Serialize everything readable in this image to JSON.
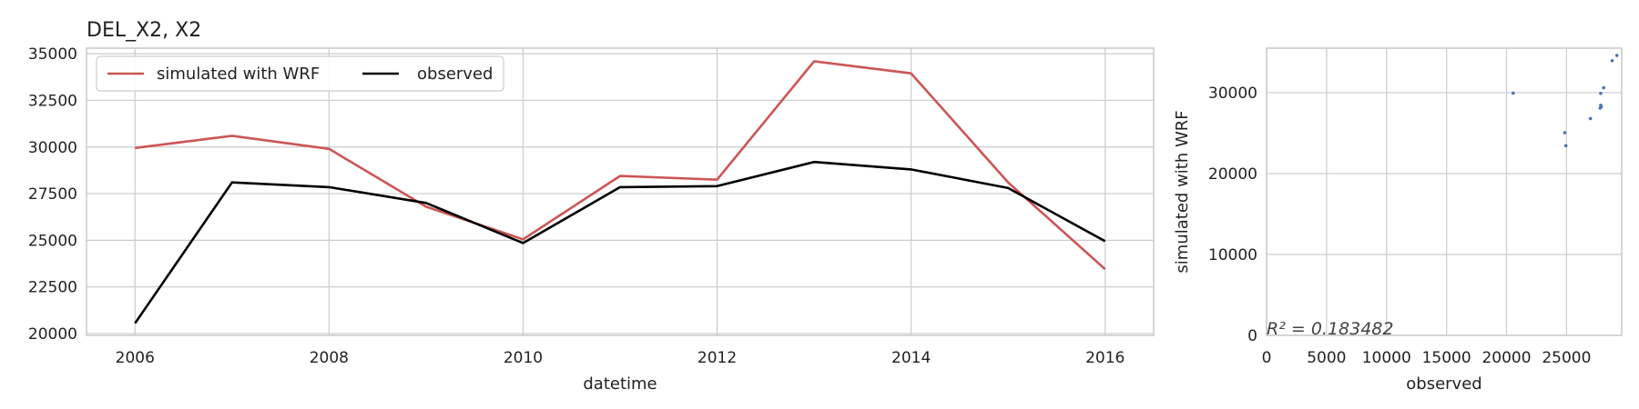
{
  "chart_data": [
    {
      "type": "line",
      "title": "DEL_X2, X2",
      "xlabel": "datetime",
      "ylabel": "",
      "x": [
        2006,
        2007,
        2008,
        2009,
        2010,
        2011,
        2012,
        2013,
        2014,
        2015,
        2016
      ],
      "xlim": [
        2005.5,
        2016.5
      ],
      "ylim": [
        19900,
        35300
      ],
      "xticks": [
        2006,
        2008,
        2010,
        2012,
        2014,
        2016
      ],
      "xtick_labels": [
        "2006",
        "2008",
        "2010",
        "2012",
        "2014",
        "2016"
      ],
      "yticks": [
        20000,
        22500,
        25000,
        27500,
        30000,
        32500,
        35000
      ],
      "ytick_labels": [
        "20000",
        "22500",
        "25000",
        "27500",
        "30000",
        "32500",
        "35000"
      ],
      "grid": true,
      "legend_position": "top-left",
      "series": [
        {
          "name": "simulated with WRF",
          "color": "#cc5555",
          "values": [
            29950,
            30600,
            29900,
            26800,
            25050,
            28450,
            28250,
            34600,
            33950,
            28100,
            23450
          ]
        },
        {
          "name": "observed",
          "color": "#000000",
          "values": [
            20550,
            28100,
            27850,
            27000,
            24850,
            27850,
            27900,
            29200,
            28800,
            27800,
            24950
          ]
        }
      ]
    },
    {
      "type": "scatter",
      "title": "",
      "xlabel": "observed",
      "ylabel": "simulated with WRF",
      "xlim": [
        0,
        29600
      ],
      "ylim": [
        0,
        35500
      ],
      "xticks": [
        0,
        5000,
        10000,
        15000,
        20000,
        25000
      ],
      "xtick_labels": [
        "0",
        "5000",
        "10000",
        "15000",
        "20000",
        "25000"
      ],
      "yticks": [
        0,
        10000,
        20000,
        30000
      ],
      "ytick_labels": [
        "0",
        "10000",
        "20000",
        "30000"
      ],
      "grid": true,
      "point_color": "#4c72b0",
      "annotation": "R² = 0.183482",
      "points": [
        {
          "x": 20550,
          "y": 29950
        },
        {
          "x": 28100,
          "y": 30600
        },
        {
          "x": 27850,
          "y": 29900
        },
        {
          "x": 27000,
          "y": 26800
        },
        {
          "x": 24850,
          "y": 25050
        },
        {
          "x": 27850,
          "y": 28450
        },
        {
          "x": 27900,
          "y": 28250
        },
        {
          "x": 29200,
          "y": 34600
        },
        {
          "x": 28800,
          "y": 33950
        },
        {
          "x": 27800,
          "y": 28100
        },
        {
          "x": 24950,
          "y": 23450
        }
      ]
    }
  ]
}
